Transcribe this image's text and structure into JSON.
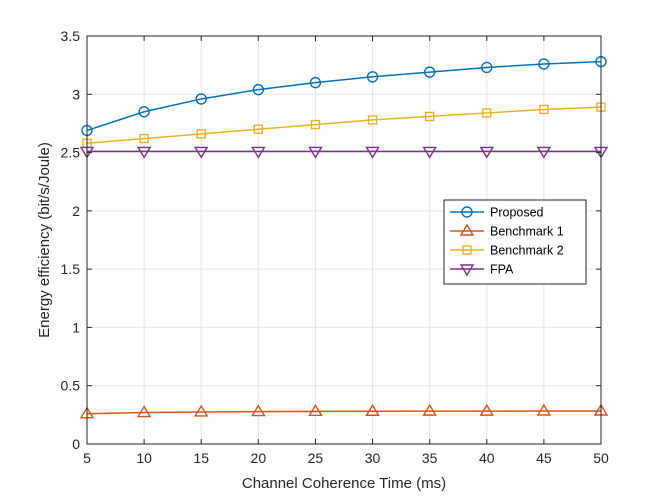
{
  "chart_data": {
    "type": "line",
    "title": "",
    "xlabel": "Channel Coherence Time (ms)",
    "ylabel": "Energy efficiency (bit/s/Joule)",
    "xlim": [
      5,
      50
    ],
    "ylim": [
      0,
      3.5
    ],
    "xticks": [
      "5",
      "10",
      "15",
      "20",
      "25",
      "30",
      "35",
      "40",
      "45",
      "50"
    ],
    "yticks": [
      "0",
      "0.5",
      "1",
      "1.5",
      "2",
      "2.5",
      "3",
      "3.5"
    ],
    "grid": true,
    "legend_position": "center-right",
    "x": [
      5,
      10,
      15,
      20,
      25,
      30,
      35,
      40,
      45,
      50
    ],
    "series": [
      {
        "name": "Proposed",
        "color": "#0072BD",
        "marker": "circle",
        "values": [
          2.69,
          2.85,
          2.96,
          3.04,
          3.1,
          3.15,
          3.19,
          3.23,
          3.26,
          3.28
        ]
      },
      {
        "name": "Benchmark 1",
        "color": "#D95319",
        "marker": "triangle-up",
        "values": [
          0.26,
          0.27,
          0.275,
          0.278,
          0.28,
          0.281,
          0.282,
          0.282,
          0.283,
          0.283
        ]
      },
      {
        "name": "Benchmark 2",
        "color": "#EDB120",
        "marker": "square",
        "values": [
          2.58,
          2.62,
          2.66,
          2.7,
          2.74,
          2.78,
          2.81,
          2.84,
          2.87,
          2.89
        ]
      },
      {
        "name": "FPA",
        "color": "#7E2F8E",
        "marker": "triangle-down",
        "values": [
          2.51,
          2.51,
          2.51,
          2.51,
          2.51,
          2.51,
          2.51,
          2.51,
          2.51,
          2.51
        ]
      }
    ]
  }
}
